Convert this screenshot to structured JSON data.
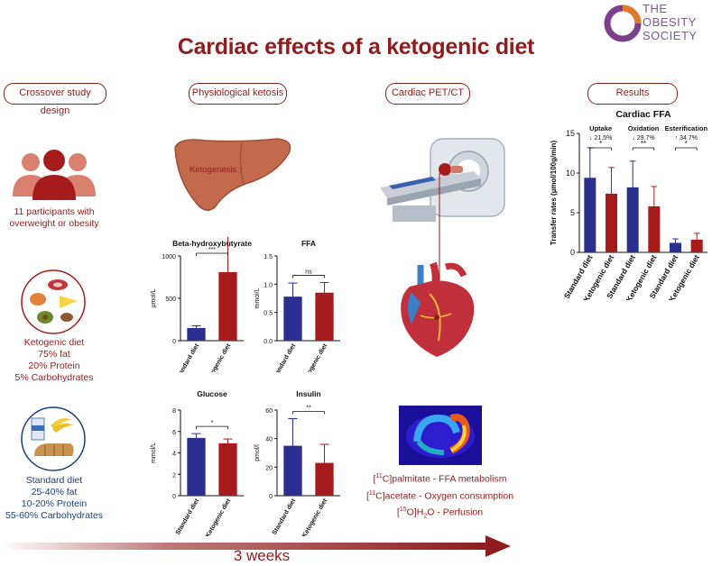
{
  "header": {
    "title": "Cardiac effects of a ketogenic diet",
    "logo_line1": "THE",
    "logo_line2": "OBESITY",
    "logo_line3": "SOCIETY"
  },
  "sections": {
    "crossover": "Crossover study design",
    "ketosis": "Physiological ketosis",
    "pet": "Cardiac PET/CT",
    "results": "Results"
  },
  "participants": {
    "line1": "11 participants with",
    "line2": "overweight or obesity"
  },
  "keto_diet": {
    "name": "Ketogenic diet",
    "fat": "75% fat",
    "protein": "20% Protein",
    "carbs": "5% Carbohydrates"
  },
  "std_diet": {
    "name": "Standard diet",
    "fat": "25-40% fat",
    "protein": "10-20% Protein",
    "carbs": "55-60% Carbohydrates"
  },
  "liver_label": "Ketogenesis ↑",
  "pet_labels": {
    "l1_sup": "11",
    "l1_rest": "C]palmitate - FFA metabolism",
    "l2_sup": "11",
    "l2_rest": "C]acetate - Oxygen consumption",
    "l3_sup": "15",
    "l3_rest": "O]H",
    "l3_sub": "2",
    "l3_end": "O - Perfusion"
  },
  "timeline": {
    "label": "3 weeks"
  },
  "colors": {
    "standard": "#2b2f8f",
    "ketogenic": "#a61c1c",
    "accent": "#8f1d1d",
    "blue_text": "#1a3f7a"
  },
  "chart_data": [
    {
      "type": "bar",
      "title": "Beta-hydroxybutyrate",
      "ylabel": "µmol/L",
      "ylim": [
        0,
        1000
      ],
      "yticks": [
        "0",
        "500",
        "1000"
      ],
      "categories": [
        "Standard diet",
        "Ketogenic diet"
      ],
      "values": [
        150,
        810
      ],
      "errors": [
        25,
        500
      ],
      "significance": "***"
    },
    {
      "type": "bar",
      "title": "FFA",
      "ylabel": "mmol/L",
      "ylim": [
        0,
        1.5
      ],
      "yticks": [
        "0.0",
        "0.5",
        "1.0",
        "1.5"
      ],
      "categories": [
        "Standard diet",
        "Ketogenic diet"
      ],
      "values": [
        0.78,
        0.85
      ],
      "errors": [
        0.24,
        0.18
      ],
      "significance": "ns"
    },
    {
      "type": "bar",
      "title": "Glucose",
      "ylabel": "mmol/L",
      "ylim": [
        0,
        8
      ],
      "yticks": [
        "0",
        "2",
        "4",
        "6",
        "8"
      ],
      "categories": [
        "Standard diet",
        "Ketogenic diet"
      ],
      "values": [
        5.4,
        4.9
      ],
      "errors": [
        0.4,
        0.4
      ],
      "significance": "*"
    },
    {
      "type": "bar",
      "title": "Insulin",
      "ylabel": "pmol/l",
      "ylim": [
        0,
        60
      ],
      "yticks": [
        "0",
        "20",
        "40",
        "60"
      ],
      "categories": [
        "Standard diet",
        "Ketogenic diet"
      ],
      "values": [
        35,
        23
      ],
      "errors": [
        19,
        13
      ],
      "significance": "**"
    },
    {
      "type": "bar",
      "title": "Cardiac FFA",
      "ylabel": "Transfer rates (µmol/100g/min)",
      "ylim": [
        0,
        15
      ],
      "yticks": [
        "0",
        "5",
        "10",
        "15"
      ],
      "categories": [
        "Standard diet",
        "Ketogenic diet",
        "Standard diet",
        "Ketogenic diet",
        "Standard diet",
        "Ketogenic diet"
      ],
      "values": [
        9.4,
        7.4,
        8.2,
        5.8,
        1.2,
        1.6
      ],
      "errors": [
        3.8,
        3.3,
        3.3,
        2.5,
        0.5,
        0.8
      ],
      "groups": [
        {
          "name": "Uptake",
          "change": "↓ 21.5%",
          "significance": "*"
        },
        {
          "name": "Oxidation",
          "change": "↓ 29.7%",
          "significance": "**"
        },
        {
          "name": "Esterification",
          "change": "↑ 34.7%",
          "significance": "*"
        }
      ]
    }
  ]
}
